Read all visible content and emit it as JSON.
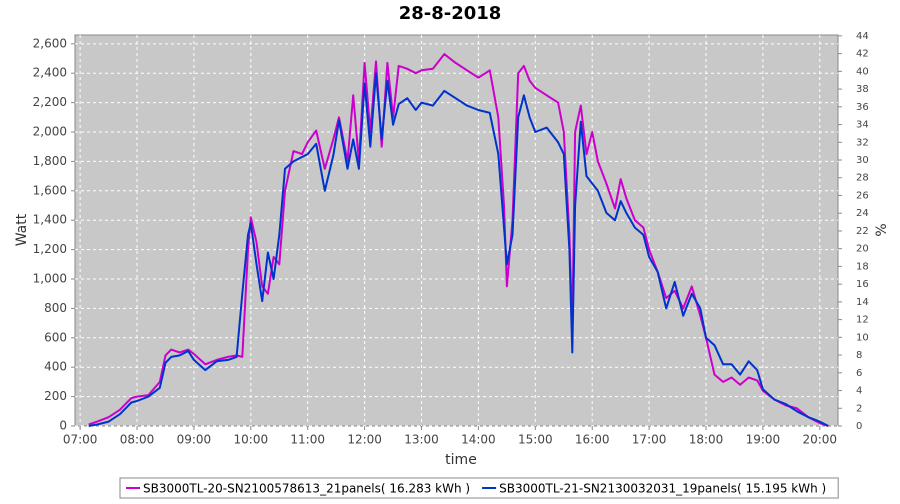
{
  "chart_data": {
    "type": "line",
    "title": "28-8-2018",
    "x_label": "time",
    "y_label": "Watt",
    "y2_label": "%",
    "grid": true,
    "legend": "bottom",
    "background": "#c8c8c8",
    "x": [
      7.15,
      7.3,
      7.5,
      7.7,
      7.9,
      8.0,
      8.2,
      8.4,
      8.5,
      8.6,
      8.75,
      8.9,
      9.0,
      9.2,
      9.4,
      9.6,
      9.75,
      9.85,
      9.95,
      10.0,
      10.1,
      10.2,
      10.3,
      10.4,
      10.5,
      10.6,
      10.75,
      10.9,
      11.0,
      11.15,
      11.3,
      11.45,
      11.55,
      11.7,
      11.8,
      11.9,
      12.0,
      12.1,
      12.2,
      12.3,
      12.4,
      12.5,
      12.6,
      12.75,
      12.9,
      13.0,
      13.2,
      13.4,
      13.6,
      13.8,
      14.0,
      14.2,
      14.35,
      14.45,
      14.5,
      14.6,
      14.7,
      14.8,
      14.9,
      15.0,
      15.2,
      15.4,
      15.5,
      15.6,
      15.65,
      15.7,
      15.8,
      15.9,
      16.0,
      16.1,
      16.25,
      16.4,
      16.5,
      16.6,
      16.75,
      16.9,
      17.0,
      17.15,
      17.3,
      17.45,
      17.6,
      17.75,
      17.9,
      18.0,
      18.15,
      18.3,
      18.45,
      18.6,
      18.75,
      18.9,
      19.0,
      19.2,
      19.4,
      19.6,
      19.8,
      20.0,
      20.15
    ],
    "series": [
      {
        "name": "SB3000TL-20-SN2100578613_21panels( 16.283 kWh )",
        "color": "#cc00cc",
        "values": [
          10,
          30,
          60,
          110,
          190,
          200,
          210,
          300,
          480,
          520,
          500,
          520,
          490,
          420,
          450,
          470,
          480,
          470,
          1200,
          1420,
          1250,
          950,
          900,
          1150,
          1100,
          1600,
          1870,
          1850,
          1930,
          2010,
          1750,
          1950,
          2100,
          1800,
          2250,
          1800,
          2470,
          2000,
          2480,
          1900,
          2470,
          2100,
          2450,
          2430,
          2400,
          2420,
          2430,
          2530,
          2470,
          2420,
          2370,
          2420,
          2100,
          1500,
          950,
          1400,
          2400,
          2450,
          2350,
          2300,
          2250,
          2200,
          2000,
          1300,
          650,
          2000,
          2180,
          1850,
          2000,
          1800,
          1650,
          1480,
          1680,
          1550,
          1400,
          1350,
          1200,
          1050,
          870,
          920,
          800,
          950,
          750,
          600,
          350,
          300,
          330,
          280,
          330,
          310,
          240,
          180,
          140,
          120,
          60,
          20,
          0
        ]
      },
      {
        "name": "SB3000TL-21-SN2130032031_19panels( 15.195 kWh )",
        "color": "#0033cc",
        "values": [
          0,
          10,
          30,
          80,
          160,
          170,
          200,
          260,
          430,
          470,
          480,
          510,
          450,
          380,
          440,
          450,
          470,
          900,
          1300,
          1380,
          1100,
          850,
          1180,
          1000,
          1300,
          1750,
          1800,
          1830,
          1850,
          1920,
          1600,
          1840,
          2080,
          1750,
          1950,
          1750,
          2330,
          1900,
          2400,
          1950,
          2350,
          2050,
          2190,
          2230,
          2150,
          2200,
          2180,
          2280,
          2230,
          2180,
          2150,
          2130,
          1850,
          1350,
          1100,
          1300,
          2100,
          2250,
          2100,
          2000,
          2030,
          1930,
          1850,
          1200,
          500,
          1500,
          2070,
          1700,
          1650,
          1600,
          1450,
          1400,
          1530,
          1450,
          1350,
          1300,
          1150,
          1050,
          800,
          980,
          750,
          900,
          800,
          600,
          550,
          420,
          420,
          350,
          440,
          380,
          250,
          180,
          150,
          100,
          60,
          30,
          0
        ]
      }
    ],
    "xlim": [
      6.91,
      20.32
    ],
    "xticks": [
      {
        "value": 7,
        "label": "07:00"
      },
      {
        "value": 8,
        "label": "08:00"
      },
      {
        "value": 9,
        "label": "09:00"
      },
      {
        "value": 10,
        "label": "10:00"
      },
      {
        "value": 11,
        "label": "11:00"
      },
      {
        "value": 12,
        "label": "12:00"
      },
      {
        "value": 13,
        "label": "13:00"
      },
      {
        "value": 14,
        "label": "14:00"
      },
      {
        "value": 15,
        "label": "15:00"
      },
      {
        "value": 16,
        "label": "16:00"
      },
      {
        "value": 17,
        "label": "17:00"
      },
      {
        "value": 18,
        "label": "18:00"
      },
      {
        "value": 19,
        "label": "19:00"
      },
      {
        "value": 20,
        "label": "20:00"
      }
    ],
    "ylim": [
      0,
      2660
    ],
    "yticks": [
      0,
      200,
      400,
      600,
      800,
      {
        "value": 1000,
        "label": "1,000"
      },
      {
        "value": 1200,
        "label": "1,200"
      },
      {
        "value": 1400,
        "label": "1,400"
      },
      {
        "value": 1600,
        "label": "1,600"
      },
      {
        "value": 1800,
        "label": "1,800"
      },
      {
        "value": 2000,
        "label": "2,000"
      },
      {
        "value": 2200,
        "label": "2,200"
      },
      {
        "value": 2400,
        "label": "2,400"
      },
      {
        "value": 2600,
        "label": "2,600"
      }
    ],
    "y2lim": [
      0,
      44.1
    ],
    "y2ticks": [
      0,
      2,
      4,
      6,
      8,
      10,
      12,
      14,
      16,
      18,
      20,
      22,
      24,
      26,
      28,
      30,
      32,
      34,
      36,
      38,
      40,
      42,
      44
    ]
  }
}
